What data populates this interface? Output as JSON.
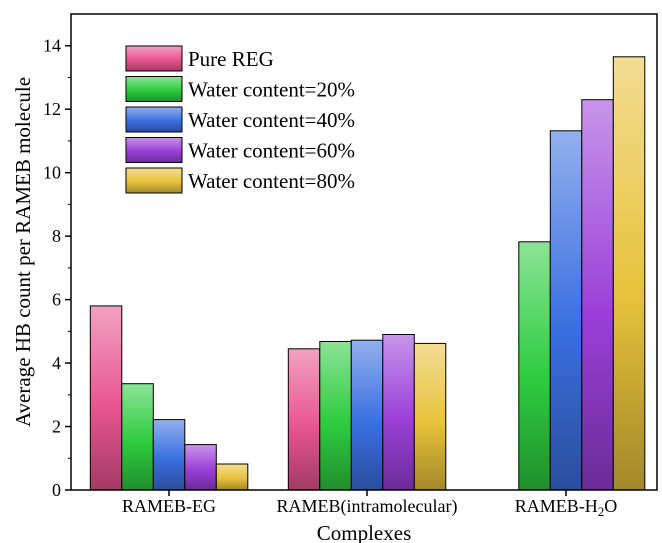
{
  "chart_data": {
    "type": "bar",
    "xlabel": "Complexes",
    "ylabel": "Average HB count per RAMEB molecule",
    "ylim": [
      0,
      15
    ],
    "yticks": [
      0,
      2,
      4,
      6,
      8,
      10,
      12,
      14
    ],
    "categories": [
      {
        "parts": [
          {
            "t": "RAMEB-EG",
            "sub": false
          }
        ]
      },
      {
        "parts": [
          {
            "t": "RAMEB(intramolecular)",
            "sub": false
          }
        ]
      },
      {
        "parts": [
          {
            "t": "RAMEB-H",
            "sub": false
          },
          {
            "t": "2",
            "sub": true
          },
          {
            "t": "O",
            "sub": false
          }
        ]
      }
    ],
    "series": [
      {
        "name": "Pure REG",
        "color": "#e8558f",
        "values": [
          5.8,
          4.45,
          null
        ]
      },
      {
        "name": "Water content=20%",
        "color": "#2ecc40",
        "values": [
          3.35,
          4.68,
          7.82
        ]
      },
      {
        "name": "Water content=40%",
        "color": "#3a6fe0",
        "values": [
          2.22,
          4.72,
          11.32
        ]
      },
      {
        "name": "Water content=60%",
        "color": "#9a3fd8",
        "values": [
          1.43,
          4.9,
          12.3
        ]
      },
      {
        "name": "Water content=80%",
        "color": "#e8c23a",
        "values": [
          0.82,
          4.62,
          13.65
        ]
      }
    ],
    "legend_position": "top-left",
    "grid": false
  }
}
